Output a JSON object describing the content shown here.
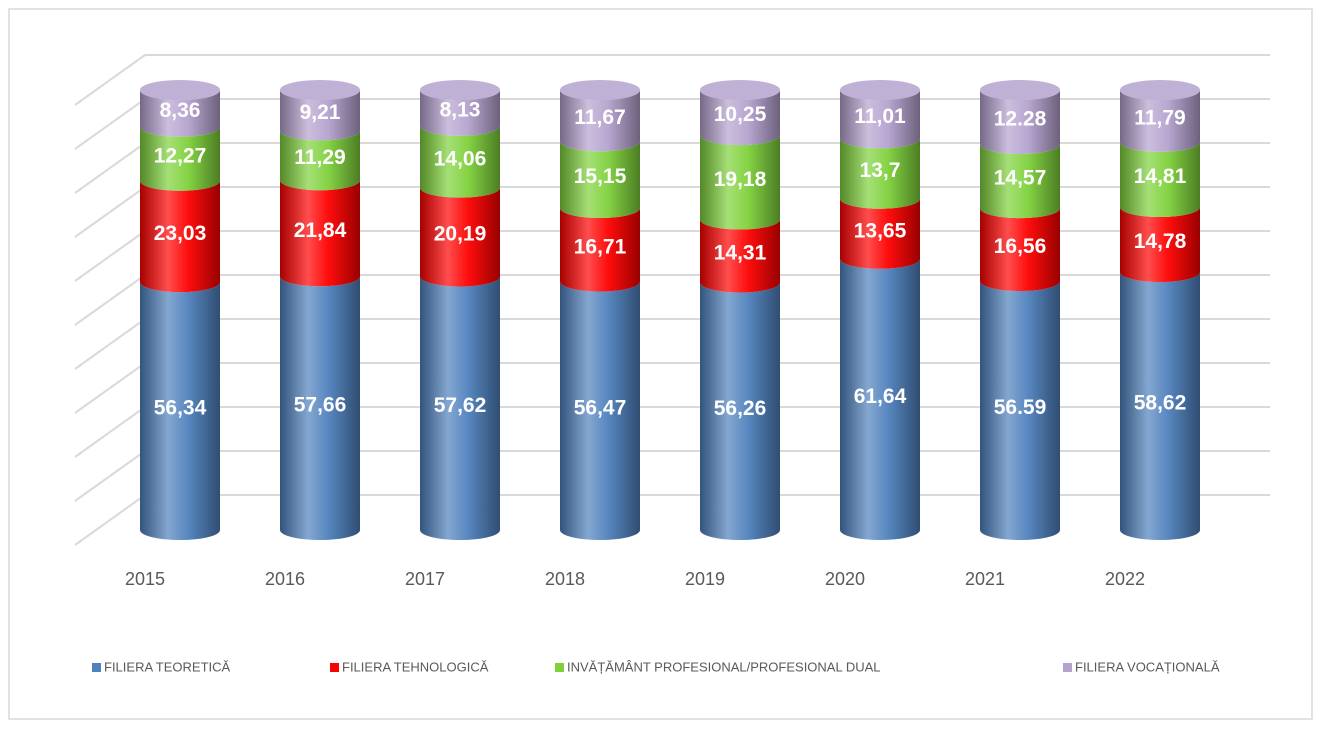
{
  "chart_data": {
    "type": "bar3d_stacked",
    "categories": [
      "2015",
      "2016",
      "2017",
      "2018",
      "2019",
      "2020",
      "2021",
      "2022"
    ],
    "ylim": [
      0,
      100
    ],
    "yticks": [
      0,
      10,
      20,
      30,
      40,
      50,
      60,
      70,
      80,
      90,
      100
    ],
    "grid": true,
    "legend": "bottom",
    "series": [
      {
        "name": "FILIERA TEORETICĂ",
        "color": "#4f81bd",
        "values": [
          56.34,
          57.66,
          57.62,
          56.47,
          56.26,
          61.64,
          56.59,
          58.62
        ],
        "value_labels": [
          "56,34",
          "57,66",
          "57,62",
          "56,47",
          "56,26",
          "61,64",
          "56.59",
          "58,62"
        ]
      },
      {
        "name": "FILIERA TEHNOLOGICĂ",
        "color": "#ff0000",
        "values": [
          23.03,
          21.84,
          20.19,
          16.71,
          14.31,
          13.65,
          16.56,
          14.78
        ],
        "value_labels": [
          "23,03",
          "21,84",
          "20,19",
          "16,71",
          "14,31",
          "13,65",
          "16,56",
          "14,78"
        ]
      },
      {
        "name": "INVĂȚĂMÂNT PROFESIONAL/PROFESIONAL DUAL",
        "color": "#7fd13b",
        "values": [
          12.27,
          11.29,
          14.06,
          15.15,
          19.18,
          13.7,
          14.57,
          14.81
        ],
        "value_labels": [
          "12,27",
          "11,29",
          "14,06",
          "15,15",
          "19,18",
          "13,7",
          "14,57",
          "14,81"
        ]
      },
      {
        "name": "FILIERA VOCAȚIONALĂ",
        "color": "#b4a2cf",
        "values": [
          8.36,
          9.21,
          8.13,
          11.67,
          10.25,
          11.01,
          12.28,
          11.79
        ],
        "value_labels": [
          "8,36",
          "9,21",
          "8,13",
          "11,67",
          "10,25",
          "11,01",
          "12.28",
          "11,79"
        ]
      }
    ]
  }
}
